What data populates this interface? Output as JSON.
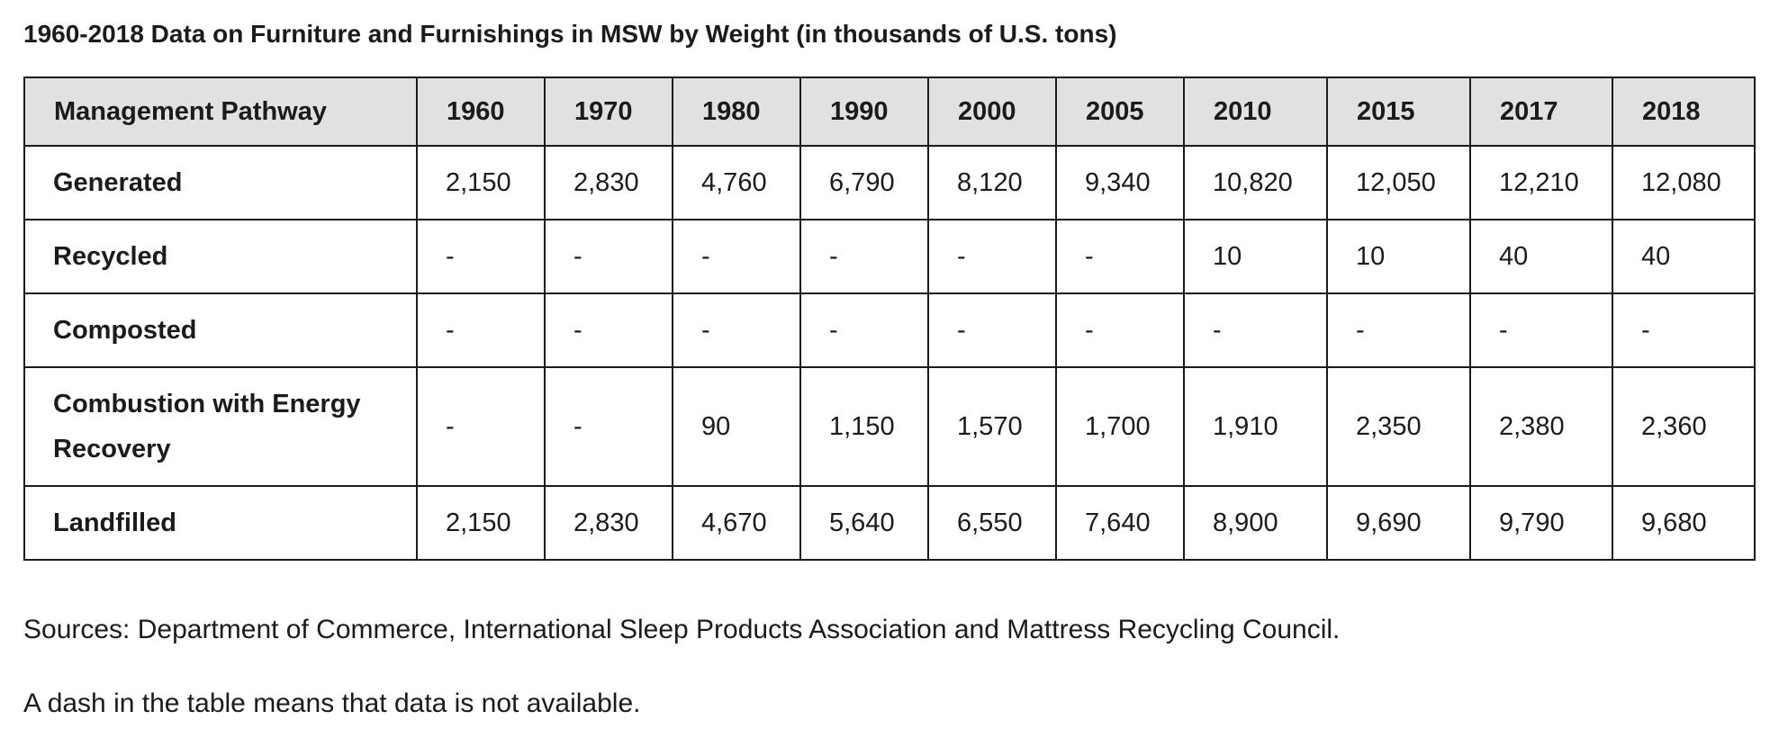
{
  "caption": "1960-2018 Data on Furniture and Furnishings in MSW by Weight (in thousands of U.S. tons)",
  "table": {
    "columns": [
      "Management Pathway",
      "1960",
      "1970",
      "1980",
      "1990",
      "2000",
      "2005",
      "2010",
      "2015",
      "2017",
      "2018"
    ],
    "rows": [
      {
        "label": "Generated",
        "cells": [
          "2,150",
          "2,830",
          "4,760",
          "6,790",
          "8,120",
          "9,340",
          "10,820",
          "12,050",
          "12,210",
          "12,080"
        ]
      },
      {
        "label": "Recycled",
        "cells": [
          "-",
          "-",
          "-",
          "-",
          "-",
          "-",
          "10",
          "10",
          "40",
          "40"
        ]
      },
      {
        "label": "Composted",
        "cells": [
          "-",
          "-",
          "-",
          "-",
          "-",
          "-",
          "-",
          "-",
          "-",
          "-"
        ]
      },
      {
        "label": "Combustion with Energy Recovery",
        "cells": [
          "-",
          "-",
          "90",
          "1,150",
          "1,570",
          "1,700",
          "1,910",
          "2,350",
          "2,380",
          "2,360"
        ]
      },
      {
        "label": "Landfilled",
        "cells": [
          "2,150",
          "2,830",
          "4,670",
          "5,640",
          "6,550",
          "7,640",
          "8,900",
          "9,690",
          "9,790",
          "9,680"
        ]
      }
    ]
  },
  "notes": {
    "sources": "Sources: Department of Commerce, International Sleep Products Association and Mattress Recycling Council.",
    "dash": "A dash in the table means that data is not available."
  }
}
